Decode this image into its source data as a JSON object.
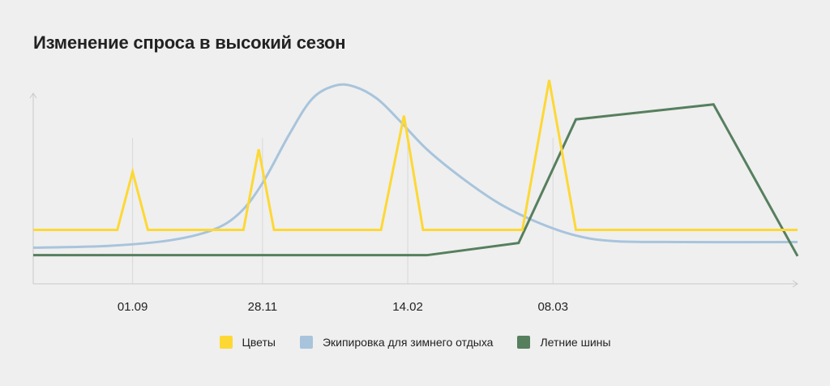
{
  "title": "Изменение спроса в высокий сезон",
  "colors": {
    "flowers": "#fdd835",
    "winter": "#a8c4dc",
    "summer": "#567f5e",
    "axis": "#c9c9c9",
    "grid": "#d8d8d8"
  },
  "chart_data": {
    "type": "line",
    "title": "Изменение спроса в высокий сезон",
    "xlabel": "",
    "ylabel": "",
    "ticks": [
      {
        "label": "01.09",
        "x": 13
      },
      {
        "label": "28.11",
        "x": 30
      },
      {
        "label": "14.02",
        "x": 49
      },
      {
        "label": "08.03",
        "x": 68
      }
    ],
    "xlim": [
      0,
      100
    ],
    "ylim": [
      0,
      100
    ],
    "grid": "vertical at ticks",
    "series": [
      {
        "name": "Цветы",
        "color": "#fdd835",
        "points": [
          [
            0,
            21
          ],
          [
            11,
            21
          ],
          [
            13,
            52
          ],
          [
            15,
            21
          ],
          [
            27.5,
            21
          ],
          [
            29.5,
            64
          ],
          [
            31.5,
            21
          ],
          [
            45.5,
            21
          ],
          [
            48.5,
            82
          ],
          [
            51,
            21
          ],
          [
            64,
            21
          ],
          [
            67.5,
            101
          ],
          [
            71,
            21
          ],
          [
            100,
            21
          ]
        ]
      },
      {
        "name": "Экипировка для зимнего отдыха",
        "color": "#a8c4dc",
        "points": [
          [
            0,
            11.5
          ],
          [
            10,
            12.5
          ],
          [
            18,
            15.5
          ],
          [
            23.5,
            21
          ],
          [
            27,
            30
          ],
          [
            30,
            46
          ],
          [
            33.5,
            72
          ],
          [
            36.5,
            91
          ],
          [
            39.5,
            98
          ],
          [
            42,
            97.5
          ],
          [
            45,
            91
          ],
          [
            48,
            79
          ],
          [
            51.5,
            64
          ],
          [
            56,
            49
          ],
          [
            61,
            35
          ],
          [
            66,
            25
          ],
          [
            71,
            18
          ],
          [
            76,
            15
          ],
          [
            85,
            14.5
          ],
          [
            100,
            14.5
          ]
        ]
      },
      {
        "name": "Летние шины",
        "color": "#567f5e",
        "points": [
          [
            0,
            7.5
          ],
          [
            51.5,
            7.5
          ],
          [
            63.5,
            14
          ],
          [
            71,
            80
          ],
          [
            89,
            88
          ],
          [
            100,
            7
          ]
        ]
      }
    ]
  },
  "legend": [
    {
      "label": "Цветы",
      "color": "#fdd835"
    },
    {
      "label": "Экипировка для зимнего отдыха",
      "color": "#a8c4dc"
    },
    {
      "label": "Летние шины",
      "color": "#567f5e"
    }
  ]
}
